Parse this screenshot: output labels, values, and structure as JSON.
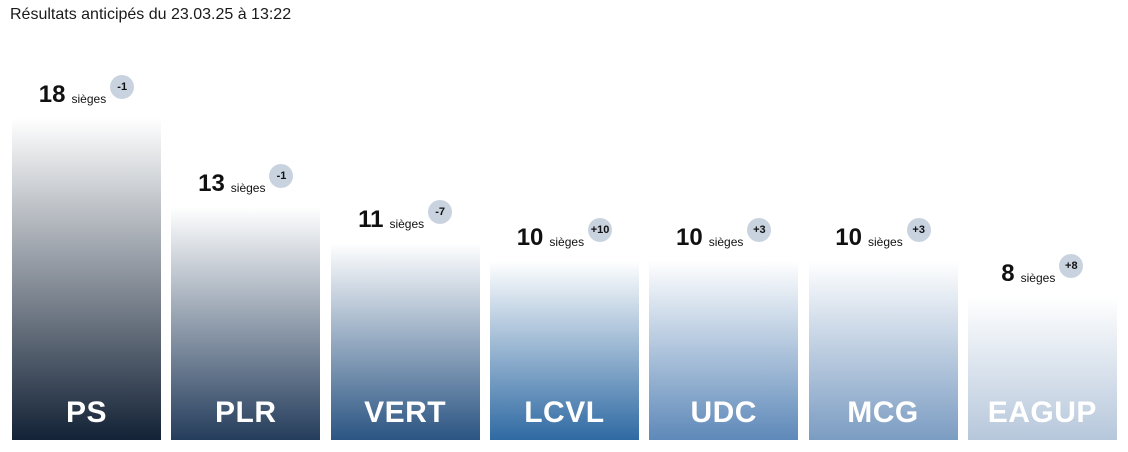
{
  "title": "Résultats anticipés du 23.03.25 à 13:22",
  "seat_unit": "sièges",
  "chart_data": {
    "type": "bar",
    "categories": [
      "PS",
      "PLR",
      "VERT",
      "LCVL",
      "UDC",
      "MCG",
      "EAGUP"
    ],
    "values": [
      18,
      13,
      11,
      10,
      10,
      10,
      8
    ],
    "deltas": [
      "-1",
      "-1",
      "-7",
      "+10",
      "+3",
      "+3",
      "+8"
    ],
    "colors": [
      "#132236",
      "#253d5c",
      "#2b5583",
      "#2f6aa3",
      "#5e89b9",
      "#7b9cc2",
      "#b6c7db"
    ],
    "ylim": [
      0,
      18
    ]
  }
}
